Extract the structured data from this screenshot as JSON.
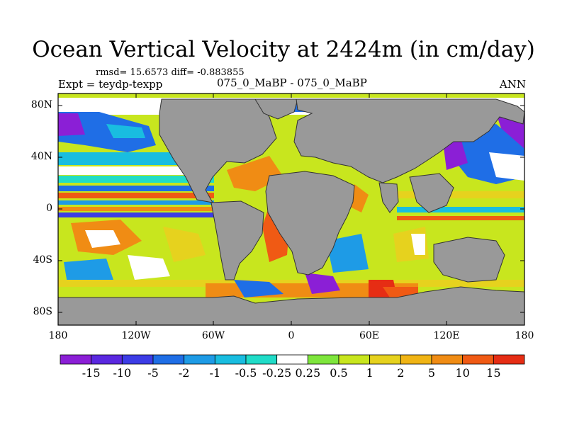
{
  "title": "Ocean Vertical Velocity at 2424m (in cm/day)",
  "stats_line": "rmsd= 15.6573  diff= -0.883855",
  "expt_line": "Expt = teydp-texpp",
  "center_line": "075_0_MaBP - 075_0_MaBP",
  "season": "ANN",
  "y_ticks": [
    "80N",
    "40N",
    "0",
    "40S",
    "80S"
  ],
  "x_ticks": [
    "180",
    "120W",
    "60W",
    "0",
    "60E",
    "120E",
    "180"
  ],
  "colorbar": {
    "labels": [
      "-15",
      "-10",
      "-5",
      "-2",
      "-1",
      "-0.5",
      "-0.25",
      "0.25",
      "0.5",
      "1",
      "2",
      "5",
      "10",
      "15"
    ],
    "colors": [
      "#8b1fd6",
      "#3c3ce6",
      "#1f6ee6",
      "#1e9be6",
      "#19bde0",
      "#20dcc8",
      "#ffffff",
      "#7ee63c",
      "#c8e61e",
      "#e6d21e",
      "#f0b414",
      "#f08c14",
      "#f05a14",
      "#e62d14"
    ]
  },
  "colors": {
    "land": "#999999",
    "ocean_default": "#c8e61e"
  }
}
